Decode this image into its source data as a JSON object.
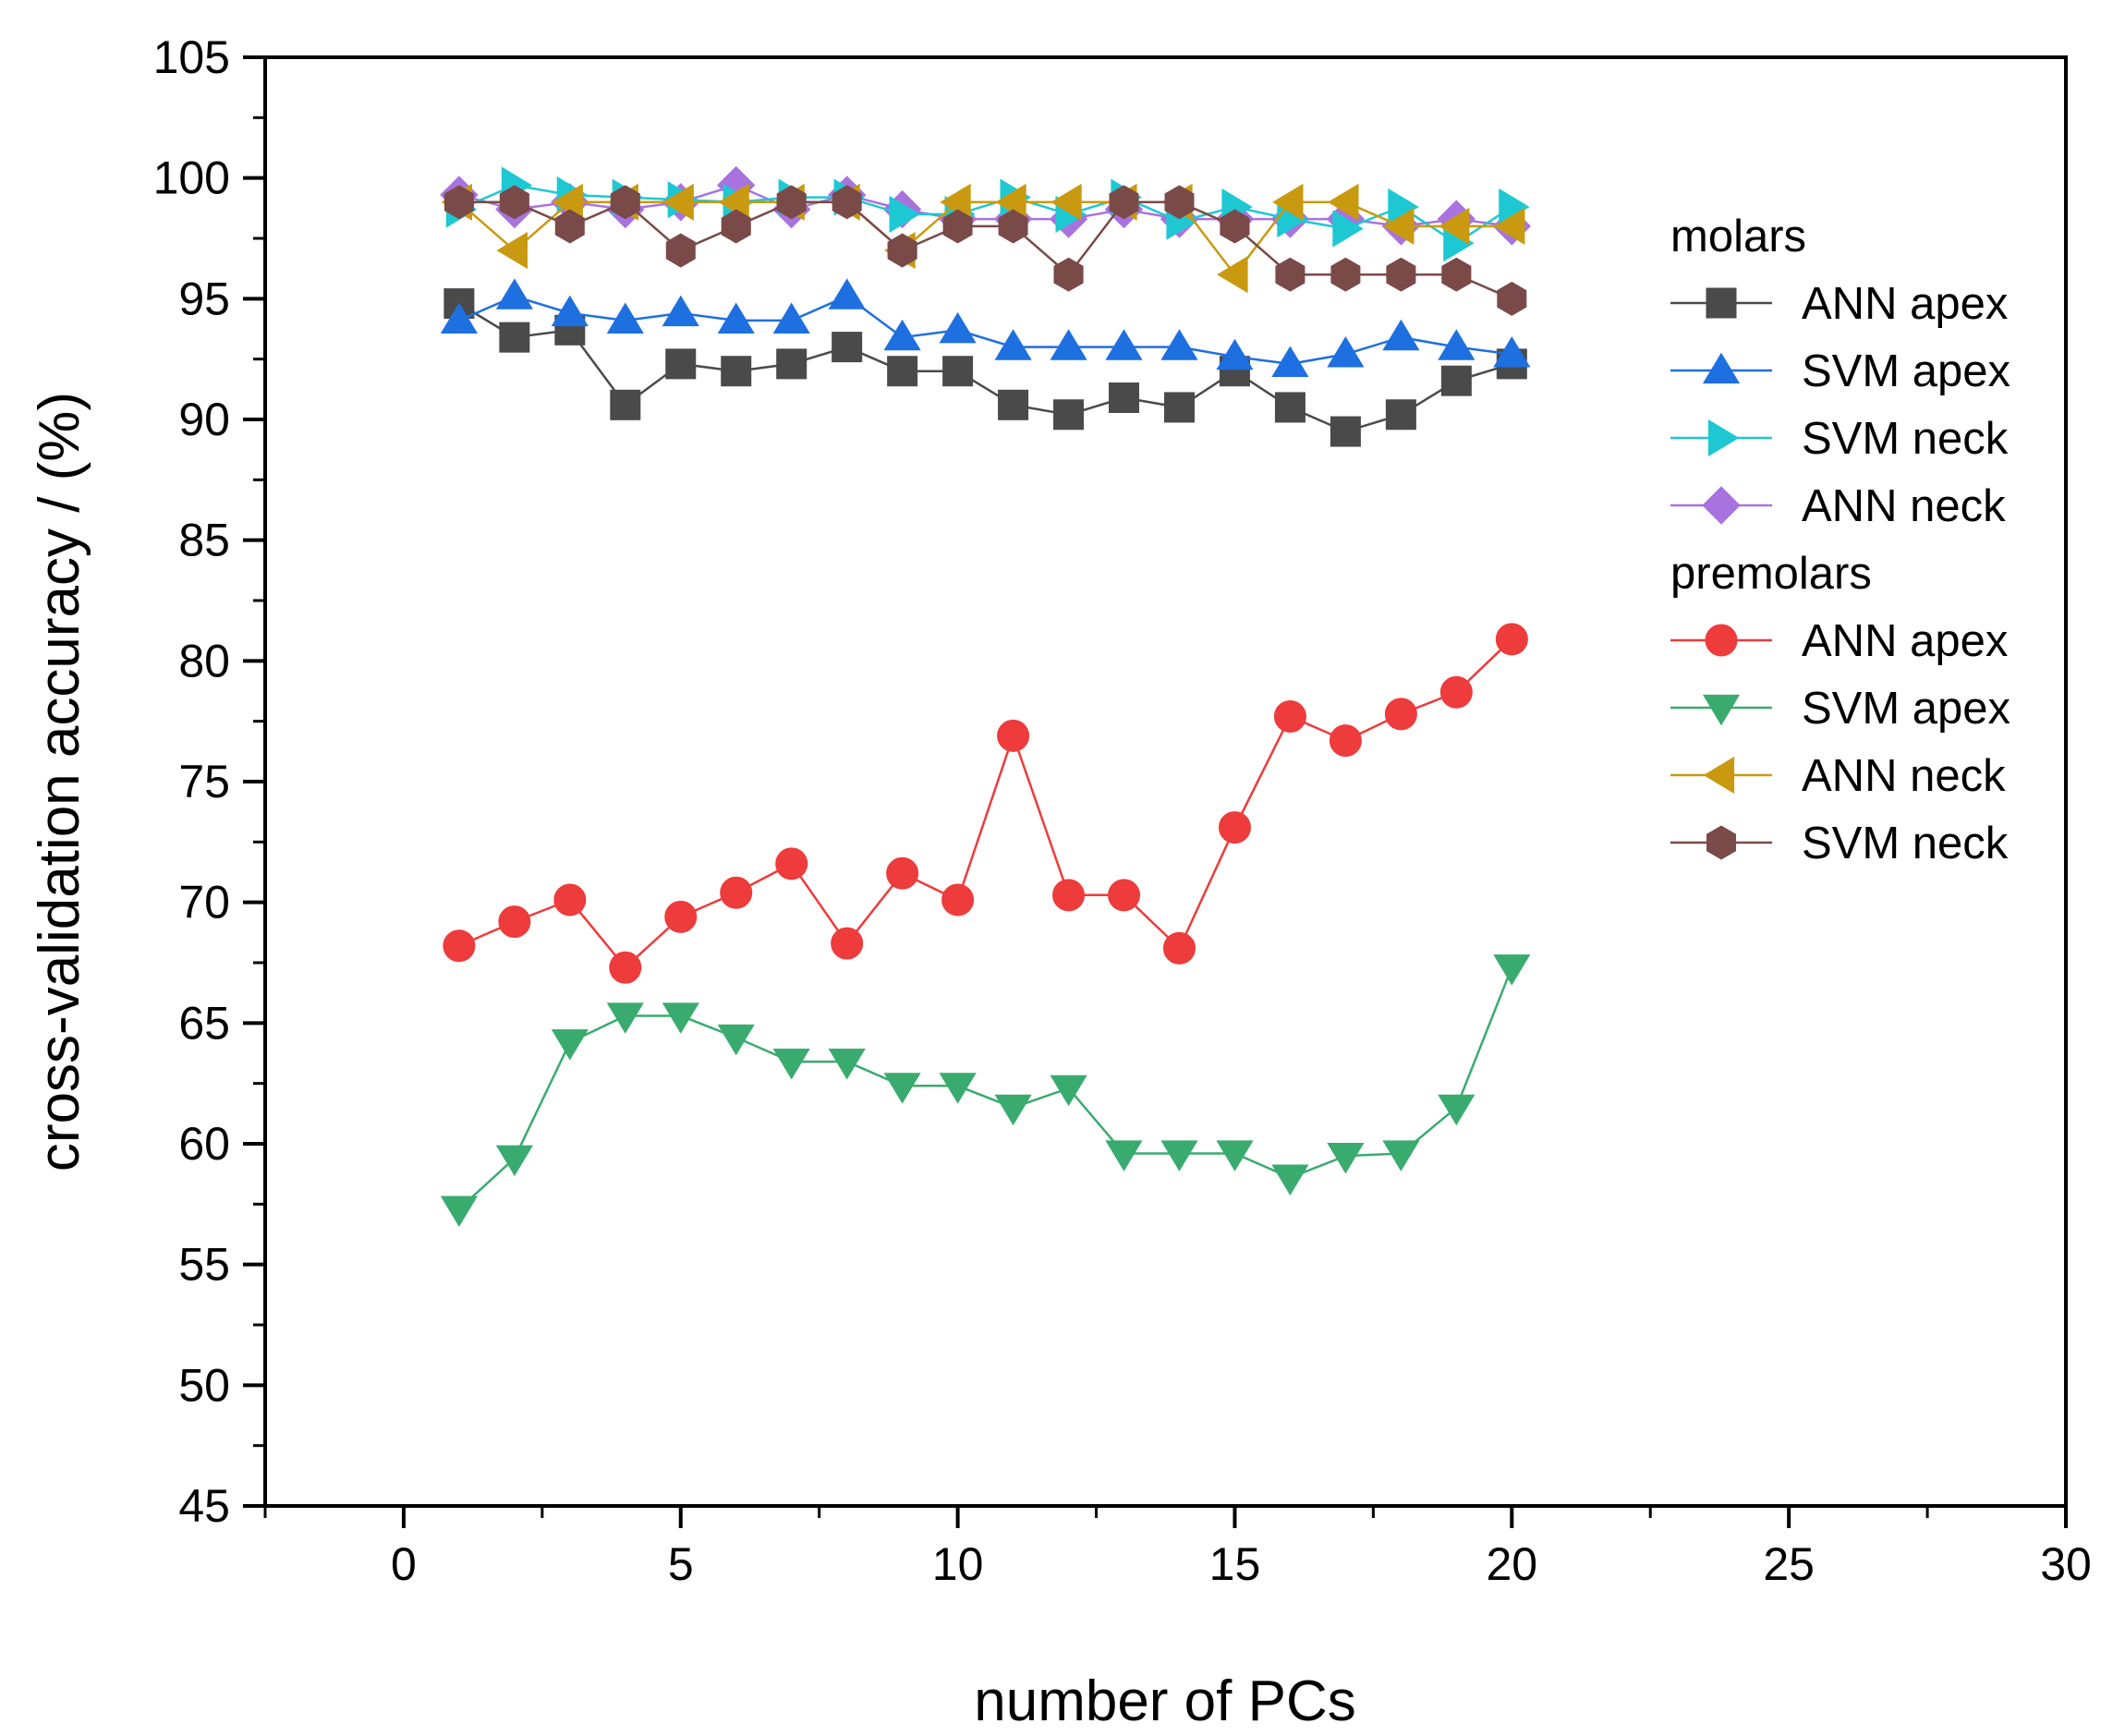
{
  "chart_data": {
    "type": "line",
    "title": "",
    "xlabel": "number of PCs",
    "ylabel": "cross-validation accuracy / (%)",
    "xlim": [
      -2.5,
      30
    ],
    "ylim": [
      45,
      105
    ],
    "x_ticks": [
      0,
      5,
      10,
      15,
      20,
      25,
      30
    ],
    "y_ticks": [
      45,
      50,
      55,
      60,
      65,
      70,
      75,
      80,
      85,
      90,
      95,
      100,
      105
    ],
    "x_tick_labels": [
      "0",
      "5",
      "10",
      "15",
      "20",
      "25",
      "30"
    ],
    "y_tick_labels": [
      "45",
      "50",
      "55",
      "60",
      "65",
      "70",
      "75",
      "80",
      "85",
      "90",
      "95",
      "100",
      "105"
    ],
    "x": [
      1,
      2,
      3,
      4,
      5,
      6,
      7,
      8,
      9,
      10,
      11,
      12,
      13,
      14,
      15,
      16,
      17,
      18,
      19,
      20
    ],
    "legend": {
      "position": "right",
      "groups": [
        {
          "title": "molars",
          "series_names": [
            "ANN apex",
            "SVM apex",
            "SVM neck",
            "ANN neck"
          ]
        },
        {
          "title": "premolars",
          "series_names": [
            "ANN apex",
            "SVM apex",
            "ANN neck",
            "SVM neck"
          ]
        }
      ]
    },
    "series": [
      {
        "group": "molars",
        "name": "ANN apex",
        "marker": "square",
        "color": "#4a4a4a",
        "values": [
          94.8,
          93.4,
          93.7,
          90.6,
          92.3,
          92.0,
          92.3,
          93.0,
          92.0,
          92.0,
          90.6,
          90.2,
          90.9,
          90.5,
          92.0,
          90.5,
          89.5,
          90.2,
          91.6,
          92.3
        ]
      },
      {
        "group": "molars",
        "name": "SVM apex",
        "marker": "triangle-up",
        "color": "#1e6fe0",
        "values": [
          94.1,
          95.1,
          94.4,
          94.1,
          94.4,
          94.1,
          94.1,
          95.1,
          93.4,
          93.7,
          93.0,
          93.0,
          93.0,
          93.0,
          92.6,
          92.3,
          92.7,
          93.4,
          93.0,
          92.7
        ]
      },
      {
        "group": "molars",
        "name": "SVM neck",
        "marker": "triangle-right",
        "color": "#1ec8d2",
        "values": [
          98.7,
          99.7,
          99.3,
          99.2,
          99.1,
          99.0,
          99.2,
          99.2,
          98.5,
          98.5,
          99.2,
          98.5,
          99.2,
          98.2,
          98.8,
          98.3,
          97.9,
          98.8,
          97.3,
          98.8
        ]
      },
      {
        "group": "molars",
        "name": "ANN neck",
        "marker": "diamond",
        "color": "#a873de",
        "values": [
          99.3,
          98.7,
          99.0,
          98.7,
          99.0,
          99.7,
          98.7,
          99.3,
          98.7,
          98.3,
          98.3,
          98.3,
          98.7,
          98.3,
          98.3,
          98.3,
          98.3,
          98.0,
          98.3,
          98.0
        ]
      },
      {
        "group": "premolars",
        "name": "ANN apex",
        "marker": "circle",
        "color": "#ee3b3b",
        "values": [
          68.2,
          69.2,
          70.1,
          67.3,
          69.4,
          70.4,
          71.6,
          68.3,
          71.2,
          70.1,
          76.9,
          70.3,
          70.3,
          68.1,
          73.1,
          77.7,
          76.7,
          77.8,
          78.7,
          80.9
        ]
      },
      {
        "group": "premolars",
        "name": "SVM apex",
        "marker": "triangle-down",
        "color": "#3aab6e",
        "values": [
          57.3,
          59.4,
          64.2,
          65.3,
          65.3,
          64.4,
          63.4,
          63.4,
          62.4,
          62.4,
          61.5,
          62.3,
          59.6,
          59.6,
          59.6,
          58.6,
          59.5,
          59.6,
          61.5,
          67.3
        ]
      },
      {
        "group": "premolars",
        "name": "ANN neck",
        "marker": "triangle-left",
        "color": "#c99a10",
        "values": [
          99.0,
          97.0,
          99.0,
          99.0,
          99.0,
          99.0,
          99.0,
          99.0,
          97.0,
          99.0,
          99.0,
          99.0,
          99.0,
          99.0,
          96.0,
          99.0,
          99.0,
          98.0,
          98.0,
          98.0
        ]
      },
      {
        "group": "premolars",
        "name": "SVM neck",
        "marker": "hexagon",
        "color": "#7a4a48",
        "values": [
          99.0,
          99.0,
          98.0,
          99.0,
          97.0,
          98.0,
          99.0,
          99.0,
          97.0,
          98.0,
          98.0,
          96.0,
          99.0,
          99.0,
          98.0,
          96.0,
          96.0,
          96.0,
          96.0,
          95.0
        ]
      }
    ]
  }
}
